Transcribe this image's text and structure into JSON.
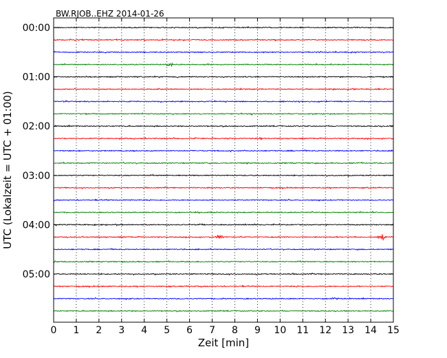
{
  "chart_data": {
    "type": "line",
    "title": "BW.RJOB..EHZ 2014-01-26",
    "xlabel": "Zeit  [min]",
    "ylabel": "UTC (Lokalzeit = UTC + 01:00)",
    "xlim": [
      0,
      15
    ],
    "x_ticks": [
      "0",
      "1",
      "2",
      "3",
      "4",
      "5",
      "6",
      "7",
      "8",
      "9",
      "10",
      "11",
      "12",
      "13",
      "14",
      "15"
    ],
    "y_ticks": [
      {
        "label": "00:00",
        "row": 0
      },
      {
        "label": "01:00",
        "row": 4
      },
      {
        "label": "02:00",
        "row": 8
      },
      {
        "label": "03:00",
        "row": 12
      },
      {
        "label": "04:00",
        "row": 16
      },
      {
        "label": "05:00",
        "row": 20
      }
    ],
    "row_interval_min": 15,
    "color_cycle": [
      "#000000",
      "#ff0000",
      "#0000ff",
      "#008000"
    ],
    "grid": "vertical dotted",
    "rows": [
      {
        "start": "00:00",
        "events": []
      },
      {
        "start": "00:15",
        "events": [
          {
            "t": 4.0,
            "amp": 1.2
          }
        ]
      },
      {
        "start": "00:30",
        "events": []
      },
      {
        "start": "00:45",
        "events": [
          {
            "t": 5.1,
            "amp": 3.0
          }
        ]
      },
      {
        "start": "01:00",
        "events": []
      },
      {
        "start": "01:15",
        "events": []
      },
      {
        "start": "01:30",
        "events": []
      },
      {
        "start": "01:45",
        "events": []
      },
      {
        "start": "02:00",
        "events": []
      },
      {
        "start": "02:15",
        "events": [
          {
            "t": 9.1,
            "amp": 1.2
          }
        ]
      },
      {
        "start": "02:30",
        "events": []
      },
      {
        "start": "02:45",
        "events": []
      },
      {
        "start": "03:00",
        "events": []
      },
      {
        "start": "03:15",
        "events": []
      },
      {
        "start": "03:30",
        "events": []
      },
      {
        "start": "03:45",
        "events": []
      },
      {
        "start": "04:00",
        "events": []
      },
      {
        "start": "04:15",
        "events": [
          {
            "t": 7.3,
            "amp": 3.5
          },
          {
            "t": 14.5,
            "amp": 4.5
          }
        ]
      },
      {
        "start": "04:30",
        "events": []
      },
      {
        "start": "04:45",
        "events": []
      },
      {
        "start": "05:00",
        "events": []
      },
      {
        "start": "05:15",
        "events": []
      },
      {
        "start": "05:30",
        "events": [
          {
            "t": 12.4,
            "amp": 1.5
          }
        ]
      },
      {
        "start": "05:45",
        "events": []
      }
    ]
  }
}
